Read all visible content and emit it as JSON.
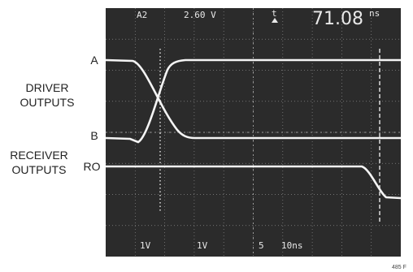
{
  "labels": {
    "a": "A",
    "driver_outputs": [
      "DRIVER",
      "OUTPUTS"
    ],
    "b": "B",
    "receiver_outputs": [
      "RECEIVER",
      "OUTPUTS"
    ],
    "ro": "RO"
  },
  "scope": {
    "top": [
      "A2",
      "2.60 V",
      "t",
      "71.08",
      "ns"
    ],
    "bottom": [
      "1V",
      "1V",
      "5",
      "10ns"
    ]
  },
  "figure_id": "485 F"
}
